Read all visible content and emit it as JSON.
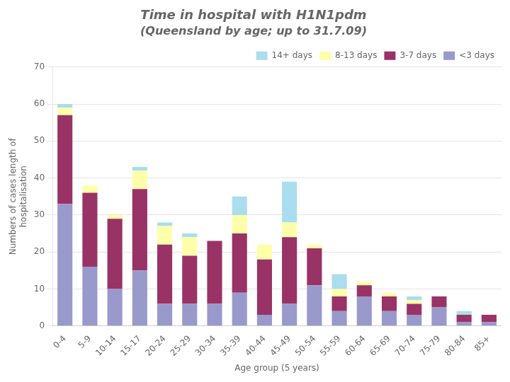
{
  "chart_data": {
    "type": "bar",
    "stacked": true,
    "title": "Time in hospital with H1N1pdm",
    "subtitle": "(Queensland by age; up to 31.7.09)",
    "x_label": "Age group (5 years)",
    "y_label": "Numbers of cases length of\nhospitalisation",
    "categories": [
      "0-4",
      "5-9",
      "10-14",
      "15-17",
      "20-24",
      "25-29",
      "30-34",
      "35-39",
      "40-44",
      "45-49",
      "50-54",
      "55-59",
      "60-64",
      "65-69",
      "70-74",
      "75-79",
      "80-84",
      "85+"
    ],
    "series": [
      {
        "name": "<3 days",
        "color": "#9999cc",
        "values": [
          33,
          16,
          10,
          15,
          6,
          6,
          6,
          9,
          3,
          6,
          11,
          4,
          8,
          4,
          3,
          5,
          1,
          1
        ]
      },
      {
        "name": "3-7 days",
        "color": "#993366",
        "values": [
          24,
          20,
          19,
          22,
          16,
          13,
          17,
          16,
          15,
          18,
          10,
          4,
          3,
          4,
          3,
          3,
          2,
          2
        ]
      },
      {
        "name": "8-13 days",
        "color": "#ffffaa",
        "values": [
          2,
          2,
          1,
          5,
          5,
          5,
          0,
          5,
          4,
          4,
          1,
          2,
          1,
          1,
          1,
          0,
          0,
          0
        ]
      },
      {
        "name": "14+ days",
        "color": "#aaddee",
        "values": [
          1,
          0,
          0,
          1,
          1,
          1,
          0,
          5,
          0,
          11,
          0,
          4,
          0,
          0,
          1,
          0,
          1,
          0
        ]
      }
    ],
    "ylim": [
      0,
      70
    ],
    "yticks": [
      0,
      10,
      20,
      30,
      40,
      50,
      60,
      70
    ],
    "grid": "y",
    "legend": "upper right"
  }
}
